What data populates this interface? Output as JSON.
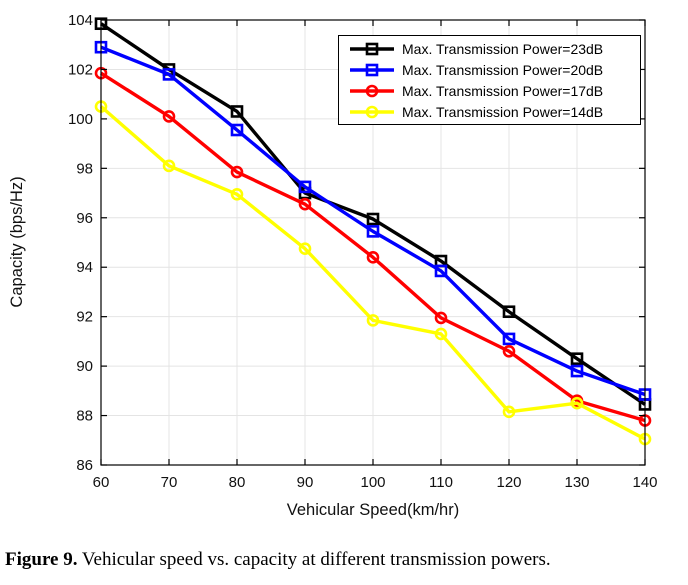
{
  "figure": {
    "caption_label": "Figure 9.",
    "caption_text": "Vehicular speed vs. capacity at different transmission powers."
  },
  "chart_data": {
    "type": "line",
    "title": "",
    "xlabel": "Vehicular Speed(km/hr)",
    "ylabel": "Capacity (bps/Hz)",
    "x": [
      60,
      70,
      80,
      90,
      100,
      110,
      120,
      130,
      140
    ],
    "xlim": [
      60,
      140
    ],
    "ylim": [
      86,
      104
    ],
    "xtick_step": 10,
    "ytick_step": 2,
    "grid": "on",
    "grid_color": "#E4E4E4",
    "axis_color": "#000000",
    "tick_label_color": "#111111",
    "legend_position": "top-right",
    "series": [
      {
        "name": "Max. Transmission Power=23dB",
        "color": "#000000",
        "marker": "square",
        "values": [
          103.85,
          102.0,
          100.3,
          97.0,
          95.95,
          94.25,
          92.2,
          90.3,
          88.45
        ]
      },
      {
        "name": "Max. Transmission Power=20dB",
        "color": "#0000FF",
        "marker": "square",
        "values": [
          102.9,
          101.8,
          99.55,
          97.25,
          95.45,
          93.85,
          91.1,
          89.8,
          88.85
        ]
      },
      {
        "name": "Max. Transmission Power=17dB",
        "color": "#FF0000",
        "marker": "circle",
        "values": [
          101.85,
          100.1,
          97.85,
          96.55,
          94.4,
          91.95,
          90.6,
          88.6,
          87.8
        ]
      },
      {
        "name": "Max. Transmission Power=14dB",
        "color": "#FFFF00",
        "marker": "circle",
        "values": [
          100.5,
          98.1,
          96.95,
          94.75,
          91.85,
          91.3,
          88.15,
          88.5,
          87.05
        ]
      }
    ]
  }
}
